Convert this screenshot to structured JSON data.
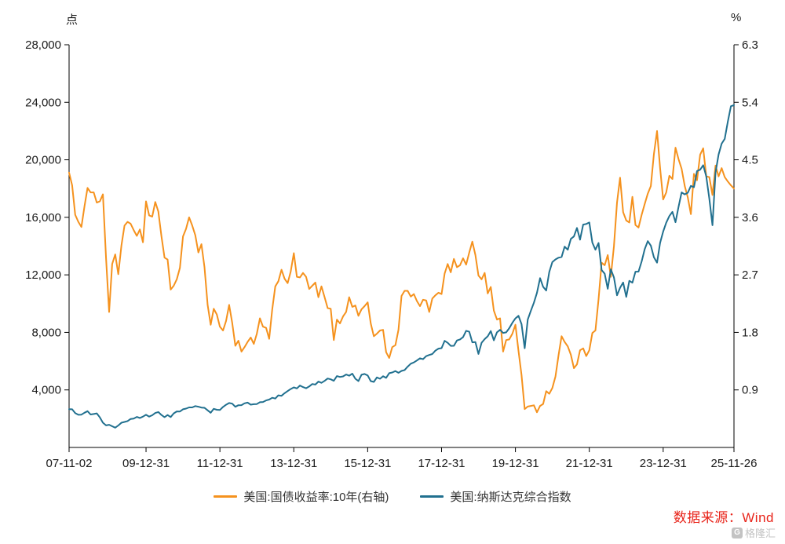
{
  "chart_data": {
    "type": "line",
    "title": "",
    "grid": false,
    "legend_position": "bottom",
    "point_count": 217,
    "x_description": "monthly points from 2007-11 to 2025-11",
    "x_tick_labels": [
      "07-11-02",
      "09-12-31",
      "11-12-31",
      "13-12-31",
      "15-12-31",
      "17-12-31",
      "19-12-31",
      "21-12-31",
      "23-12-31",
      "25-11-26"
    ],
    "x_tick_indices": [
      0,
      25,
      49,
      73,
      97,
      121,
      145,
      169,
      193,
      216
    ],
    "left_axis": {
      "unit": "点",
      "min": 0,
      "max": 28000,
      "tick_values": [
        4000,
        8000,
        12000,
        16000,
        20000,
        24000,
        28000
      ],
      "tick_labels": [
        "4,000",
        "8,000",
        "12,000",
        "16,000",
        "20,000",
        "24,000",
        "28,000"
      ]
    },
    "right_axis": {
      "unit": "%",
      "min": 0,
      "max": 6.3,
      "tick_values": [
        0.9,
        1.8,
        2.7,
        3.6,
        4.5,
        5.4,
        6.3
      ],
      "tick_labels": [
        "0.9",
        "1.8",
        "2.7",
        "3.6",
        "4.5",
        "5.4",
        "6.3"
      ]
    },
    "series": [
      {
        "name": "美国:国债收益率:10年(右轴)",
        "axis": "right",
        "color": "#F5921E",
        "values": [
          4.3,
          4.1,
          3.64,
          3.53,
          3.45,
          3.77,
          4.06,
          3.99,
          3.99,
          3.83,
          3.85,
          3.96,
          2.96,
          2.12,
          2.87,
          3.02,
          2.71,
          3.16,
          3.47,
          3.53,
          3.5,
          3.4,
          3.31,
          3.41,
          3.21,
          3.85,
          3.63,
          3.61,
          3.84,
          3.69,
          3.31,
          2.97,
          2.94,
          2.47,
          2.53,
          2.63,
          2.81,
          3.3,
          3.42,
          3.6,
          3.47,
          3.32,
          3.05,
          3.18,
          2.82,
          2.23,
          1.92,
          2.17,
          2.08,
          1.89,
          1.83,
          1.98,
          2.23,
          1.95,
          1.59,
          1.67,
          1.5,
          1.57,
          1.65,
          1.72,
          1.62,
          1.78,
          2.02,
          1.89,
          1.87,
          1.7,
          2.16,
          2.52,
          2.6,
          2.78,
          2.64,
          2.57,
          2.75,
          3.04,
          2.67,
          2.66,
          2.73,
          2.67,
          2.48,
          2.53,
          2.58,
          2.35,
          2.52,
          2.35,
          2.18,
          2.17,
          1.68,
          2.0,
          1.94,
          2.05,
          2.12,
          2.35,
          2.2,
          2.22,
          2.06,
          2.16,
          2.21,
          2.27,
          1.94,
          1.74,
          1.78,
          1.83,
          1.84,
          1.49,
          1.4,
          1.57,
          1.6,
          1.84,
          2.37,
          2.45,
          2.45,
          2.36,
          2.4,
          2.29,
          2.21,
          2.31,
          2.3,
          2.12,
          2.33,
          2.38,
          2.42,
          2.4,
          2.72,
          2.87,
          2.74,
          2.95,
          2.82,
          2.85,
          2.96,
          2.86,
          3.05,
          3.22,
          3.01,
          2.69,
          2.63,
          2.73,
          2.41,
          2.51,
          2.14,
          2.0,
          2.02,
          1.5,
          1.68,
          1.69,
          1.78,
          1.92,
          1.51,
          1.13,
          0.6,
          0.64,
          0.65,
          0.66,
          0.55,
          0.65,
          0.68,
          0.88,
          0.84,
          0.93,
          1.11,
          1.44,
          1.74,
          1.65,
          1.58,
          1.45,
          1.24,
          1.3,
          1.52,
          1.55,
          1.43,
          1.52,
          1.79,
          1.83,
          2.32,
          2.89,
          2.85,
          3.01,
          2.67,
          3.15,
          3.83,
          4.22,
          3.68,
          3.55,
          3.52,
          3.92,
          3.48,
          3.44,
          3.64,
          3.81,
          3.97,
          4.09,
          4.59,
          4.95,
          4.37,
          3.88,
          3.99,
          4.25,
          4.2,
          4.69,
          4.51,
          4.36,
          4.09,
          3.91,
          3.65,
          4.28,
          4.18,
          4.58,
          4.68,
          4.24,
          4.23,
          3.95,
          4.41,
          4.24,
          4.37,
          4.23,
          4.16,
          4.1,
          4.05
        ]
      },
      {
        "name": "美国:纳斯达克综合指数",
        "axis": "left",
        "color": "#21708F",
        "values": [
          2661,
          2652,
          2390,
          2271,
          2279,
          2413,
          2523,
          2293,
          2326,
          2368,
          2092,
          1721,
          1536,
          1577,
          1476,
          1378,
          1529,
          1717,
          1774,
          1835,
          1979,
          2009,
          2122,
          2045,
          2145,
          2269,
          2147,
          2238,
          2398,
          2461,
          2257,
          2109,
          2255,
          2114,
          2369,
          2507,
          2498,
          2653,
          2700,
          2782,
          2781,
          2874,
          2835,
          2774,
          2756,
          2579,
          2415,
          2684,
          2620,
          2605,
          2814,
          2967,
          3092,
          3046,
          2827,
          2935,
          2940,
          3067,
          3116,
          2977,
          3010,
          3020,
          3142,
          3160,
          3268,
          3329,
          3456,
          3403,
          3626,
          3590,
          3771,
          3920,
          4060,
          4177,
          4104,
          4308,
          4199,
          4115,
          4243,
          4408,
          4370,
          4580,
          4493,
          4631,
          4792,
          4736,
          4635,
          4964,
          4901,
          4941,
          5070,
          4987,
          5128,
          4777,
          4620,
          5054,
          5109,
          5007,
          4614,
          4558,
          4870,
          4775,
          4948,
          4843,
          5162,
          5213,
          5312,
          5189,
          5324,
          5383,
          5615,
          5825,
          5912,
          6048,
          6199,
          6140,
          6348,
          6429,
          6496,
          6728,
          6874,
          6903,
          7411,
          7273,
          7063,
          7066,
          7442,
          7510,
          7672,
          8110,
          8046,
          7306,
          7331,
          6500,
          7282,
          7533,
          7729,
          8095,
          7453,
          8006,
          8175,
          7963,
          7999,
          8292,
          8665,
          8973,
          9151,
          8567,
          6900,
          8890,
          9490,
          10059,
          10745,
          11775,
          11168,
          10912,
          12199,
          12888,
          13071,
          13192,
          13247,
          13963,
          13749,
          14504,
          14673,
          15259,
          14449,
          15498,
          15538,
          15645,
          14240,
          13751,
          14221,
          12335,
          12081,
          11029,
          12391,
          11816,
          10576,
          11102,
          11468,
          10466,
          11585,
          11456,
          12222,
          12227,
          12935,
          13788,
          14346,
          14035,
          13219,
          12851,
          14226,
          15011,
          15628,
          16092,
          16379,
          15658,
          16735,
          17733,
          17599,
          17714,
          18189,
          18095,
          19218,
          19311,
          19627,
          18847,
          17299,
          15450,
          19114,
          20370,
          21122,
          21456,
          22661,
          23725,
          23800
        ]
      }
    ]
  },
  "footer": {
    "source": "数据来源：Wind",
    "source_color": "#e8241a",
    "watermark": "格隆汇",
    "watermark_logo": "G",
    "watermark_color": "#c3c3c3"
  }
}
